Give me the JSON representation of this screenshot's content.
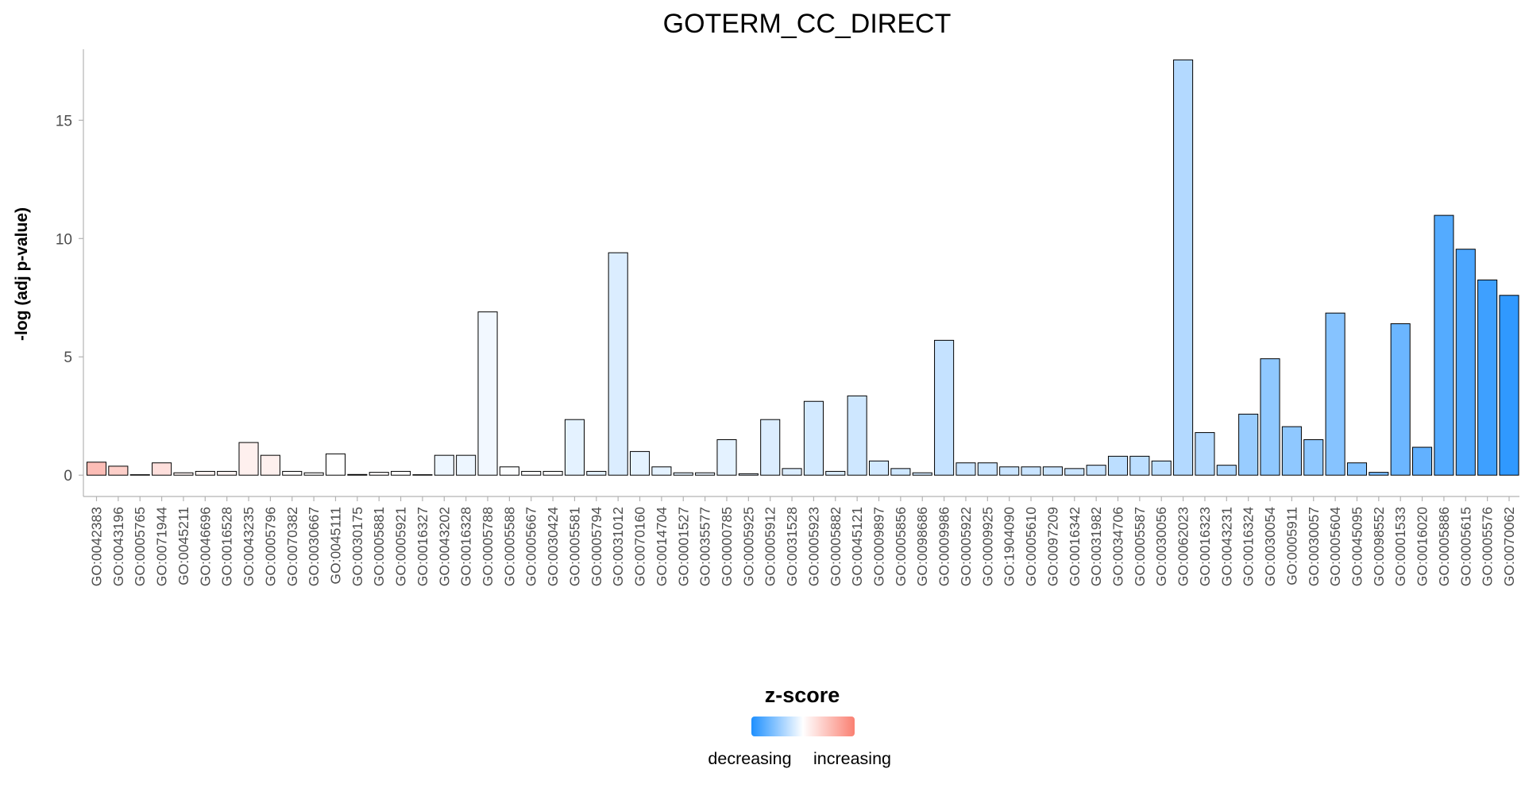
{
  "chart_data": {
    "type": "bar",
    "title": "GOTERM_CC_DIRECT",
    "xlabel": "",
    "ylabel": "-log (adj p-value)",
    "ylim": [
      -0.9,
      18.0
    ],
    "yticks": [
      0,
      5,
      10,
      15
    ],
    "grid": false,
    "legend_position": "bottom",
    "legend": {
      "title": "z-score",
      "low_label": "decreasing",
      "high_label": "increasing",
      "low_color": "#1E90FF",
      "mid_color": "#FFFFFF",
      "high_color": "#FA8072"
    },
    "categories": [
      "GO:0042383",
      "GO:0043196",
      "GO:0005765",
      "GO:0071944",
      "GO:0045211",
      "GO:0046696",
      "GO:0016528",
      "GO:0043235",
      "GO:0005796",
      "GO:0070382",
      "GO:0030667",
      "GO:0045111",
      "GO:0030175",
      "GO:0005881",
      "GO:0005921",
      "GO:0016327",
      "GO:0043202",
      "GO:0016328",
      "GO:0005788",
      "GO:0005588",
      "GO:0005667",
      "GO:0030424",
      "GO:0005581",
      "GO:0005794",
      "GO:0031012",
      "GO:0070160",
      "GO:0014704",
      "GO:0001527",
      "GO:0035577",
      "GO:0000785",
      "GO:0005925",
      "GO:0005912",
      "GO:0031528",
      "GO:0005923",
      "GO:0005882",
      "GO:0045121",
      "GO:0009897",
      "GO:0005856",
      "GO:0098686",
      "GO:0009986",
      "GO:0005922",
      "GO:0009925",
      "GO:1904090",
      "GO:0005610",
      "GO:0097209",
      "GO:0016342",
      "GO:0031982",
      "GO:0034706",
      "GO:0005587",
      "GO:0030056",
      "GO:0062023",
      "GO:0016323",
      "GO:0043231",
      "GO:0016324",
      "GO:0030054",
      "GO:0005911",
      "GO:0030057",
      "GO:0005604",
      "GO:0045095",
      "GO:0098552",
      "GO:0001533",
      "GO:0016020",
      "GO:0005886",
      "GO:0005615",
      "GO:0005576",
      "GO:0070062"
    ],
    "values": [
      0.55,
      0.38,
      0.02,
      0.52,
      0.1,
      0.16,
      0.16,
      1.38,
      0.84,
      0.16,
      0.1,
      0.9,
      0.03,
      0.12,
      0.16,
      0.02,
      0.84,
      0.84,
      6.9,
      0.35,
      0.16,
      0.16,
      2.35,
      0.16,
      9.4,
      1.0,
      0.35,
      0.1,
      0.1,
      1.5,
      0.06,
      2.35,
      0.28,
      3.12,
      0.16,
      3.35,
      0.6,
      0.28,
      0.1,
      5.7,
      0.52,
      0.52,
      0.35,
      0.35,
      0.35,
      0.28,
      0.42,
      0.8,
      0.8,
      0.6,
      17.55,
      1.8,
      0.42,
      2.58,
      4.92,
      2.05,
      1.5,
      6.85,
      0.52,
      0.12,
      6.4,
      1.18,
      10.98,
      9.55,
      8.25,
      7.6
    ],
    "zscore": [
      0.52,
      0.38,
      0.0,
      0.25,
      0.08,
      0.08,
      0.08,
      0.12,
      0.12,
      0.02,
      0.0,
      0.0,
      0.0,
      0.02,
      0.0,
      0.0,
      -0.08,
      -0.08,
      -0.06,
      -0.02,
      -0.02,
      -0.02,
      -0.12,
      -0.12,
      -0.16,
      -0.12,
      -0.12,
      -0.12,
      -0.1,
      -0.12,
      -0.12,
      -0.16,
      -0.16,
      -0.2,
      -0.16,
      -0.22,
      -0.2,
      -0.22,
      -0.2,
      -0.26,
      -0.24,
      -0.24,
      -0.24,
      -0.24,
      -0.24,
      -0.24,
      -0.26,
      -0.3,
      -0.3,
      -0.3,
      -0.34,
      -0.34,
      -0.38,
      -0.46,
      -0.5,
      -0.5,
      -0.5,
      -0.54,
      -0.56,
      -0.6,
      -0.66,
      -0.7,
      -0.76,
      -0.8,
      -0.86,
      -0.92
    ]
  }
}
